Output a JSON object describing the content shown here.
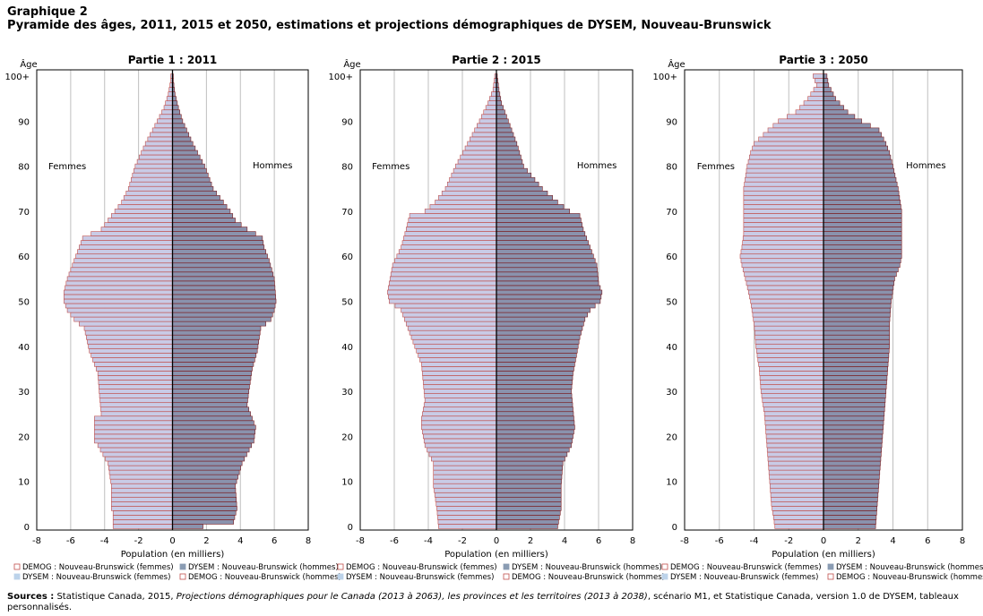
{
  "header": {
    "label": "Graphique 2",
    "title": "Pyramide des âges, 2011, 2015 et 2050, estimations et projections démographiques de DYSEM, Nouveau-Brunswick"
  },
  "colors": {
    "femmes_fill": "#c9cbe6",
    "femmes_stroke": "#c0504d",
    "hommes_fill": "#8a92ad",
    "hommes_stroke": "#7a1e22",
    "dysem_femmes": "#bcd3ea",
    "dysem_hommes": "#8a9cb3",
    "grid": "#bfbfbf"
  },
  "legend_items": [
    "DEMOG : Nouveau-Brunswick (femmes)",
    "DYSEM : Nouveau-Brunswick (hommes)",
    "DYSEM : Nouveau-Brunswick (femmes)",
    "DEMOG : Nouveau-Brunswick (hommes)"
  ],
  "sources": {
    "label": "Sources :",
    "text1": "Statistique Canada, 2015, ",
    "italic": "Projections démographiques pour le Canada (2013 à 2063), les provinces et les territoires (2013 à 2038)",
    "text2": ", scénario M1, et Statistique Canada, version 1.0 de DYSEM, tableaux personnalisés."
  },
  "chart_data": [
    {
      "type": "bar",
      "orientation": "horizontal-pyramid",
      "title": "Partie 1 : 2011",
      "ylabel": "Âge",
      "xlabel": "Population (en milliers)",
      "left_label": "Femmes",
      "right_label": "Hommes",
      "xlim": [
        -8,
        8
      ],
      "xticks": [
        -8,
        -6,
        -4,
        -2,
        0,
        2,
        4,
        6,
        8
      ],
      "yticks": [
        0,
        10,
        20,
        30,
        40,
        50,
        60,
        70,
        80,
        90
      ],
      "ytick_labels": [
        "0",
        "10",
        "20",
        "30",
        "40",
        "50",
        "60",
        "70",
        "80",
        "90"
      ],
      "top_label": "100+",
      "female_keys": [
        [
          0,
          3.5
        ],
        [
          3,
          3.5
        ],
        [
          4,
          3.6
        ],
        [
          9,
          3.6
        ],
        [
          14,
          3.8
        ],
        [
          18,
          4.4
        ],
        [
          19,
          4.6
        ],
        [
          24,
          4.6
        ],
        [
          25,
          4.2
        ],
        [
          29,
          4.3
        ],
        [
          34,
          4.4
        ],
        [
          39,
          4.9
        ],
        [
          44,
          5.2
        ],
        [
          46,
          5.8
        ],
        [
          48,
          6.2
        ],
        [
          50,
          6.4
        ],
        [
          52,
          6.4
        ],
        [
          55,
          6.2
        ],
        [
          59,
          5.8
        ],
        [
          62,
          5.5
        ],
        [
          64,
          5.3
        ],
        [
          65,
          4.8
        ],
        [
          66,
          4.2
        ],
        [
          68,
          3.8
        ],
        [
          70,
          3.4
        ],
        [
          72,
          3.0
        ],
        [
          75,
          2.6
        ],
        [
          80,
          2.2
        ],
        [
          85,
          1.6
        ],
        [
          90,
          0.9
        ],
        [
          93,
          0.5
        ],
        [
          96,
          0.25
        ],
        [
          99,
          0.1
        ],
        [
          100,
          0.1
        ]
      ],
      "male_keys": [
        [
          0,
          1.8
        ],
        [
          1,
          3.6
        ],
        [
          4,
          3.8
        ],
        [
          9,
          3.7
        ],
        [
          14,
          4.1
        ],
        [
          19,
          4.8
        ],
        [
          22,
          4.9
        ],
        [
          24,
          4.7
        ],
        [
          27,
          4.4
        ],
        [
          30,
          4.5
        ],
        [
          35,
          4.7
        ],
        [
          39,
          5.0
        ],
        [
          44,
          5.2
        ],
        [
          46,
          5.8
        ],
        [
          48,
          6.0
        ],
        [
          50,
          6.1
        ],
        [
          55,
          6.0
        ],
        [
          59,
          5.7
        ],
        [
          62,
          5.4
        ],
        [
          64,
          5.3
        ],
        [
          65,
          4.9
        ],
        [
          66,
          4.4
        ],
        [
          68,
          3.7
        ],
        [
          70,
          3.4
        ],
        [
          75,
          2.4
        ],
        [
          80,
          1.9
        ],
        [
          85,
          1.2
        ],
        [
          90,
          0.6
        ],
        [
          93,
          0.35
        ],
        [
          96,
          0.15
        ],
        [
          99,
          0.05
        ],
        [
          100,
          0.05
        ]
      ]
    },
    {
      "type": "bar",
      "orientation": "horizontal-pyramid",
      "title": "Partie 2 : 2015",
      "ylabel": "Âge",
      "xlabel": "Population (en milliers)",
      "left_label": "Femmes",
      "right_label": "Hommes",
      "xlim": [
        -8,
        8
      ],
      "xticks": [
        -8,
        -6,
        -4,
        -2,
        0,
        2,
        4,
        6,
        8
      ],
      "yticks": [
        0,
        10,
        20,
        30,
        40,
        50,
        60,
        70,
        80,
        90
      ],
      "ytick_labels": [
        "0",
        "10",
        "20",
        "30",
        "40",
        "50",
        "60",
        "70",
        "80",
        "90"
      ],
      "top_label": "100+",
      "female_keys": [
        [
          0,
          3.4
        ],
        [
          4,
          3.5
        ],
        [
          9,
          3.7
        ],
        [
          14,
          3.7
        ],
        [
          18,
          4.2
        ],
        [
          22,
          4.4
        ],
        [
          24,
          4.4
        ],
        [
          28,
          4.2
        ],
        [
          32,
          4.3
        ],
        [
          36,
          4.4
        ],
        [
          40,
          4.8
        ],
        [
          44,
          5.2
        ],
        [
          48,
          5.6
        ],
        [
          50,
          6.3
        ],
        [
          52,
          6.4
        ],
        [
          54,
          6.3
        ],
        [
          58,
          6.1
        ],
        [
          62,
          5.6
        ],
        [
          66,
          5.3
        ],
        [
          69,
          5.1
        ],
        [
          70,
          4.2
        ],
        [
          72,
          3.6
        ],
        [
          75,
          3.0
        ],
        [
          80,
          2.4
        ],
        [
          85,
          1.7
        ],
        [
          90,
          1.0
        ],
        [
          94,
          0.5
        ],
        [
          97,
          0.2
        ],
        [
          100,
          0.1
        ]
      ],
      "male_keys": [
        [
          0,
          3.6
        ],
        [
          4,
          3.8
        ],
        [
          9,
          3.8
        ],
        [
          14,
          3.9
        ],
        [
          18,
          4.4
        ],
        [
          22,
          4.6
        ],
        [
          26,
          4.5
        ],
        [
          30,
          4.4
        ],
        [
          34,
          4.5
        ],
        [
          38,
          4.7
        ],
        [
          42,
          4.9
        ],
        [
          46,
          5.2
        ],
        [
          48,
          5.5
        ],
        [
          50,
          6.1
        ],
        [
          52,
          6.2
        ],
        [
          54,
          6.0
        ],
        [
          58,
          5.9
        ],
        [
          62,
          5.5
        ],
        [
          66,
          5.1
        ],
        [
          69,
          4.9
        ],
        [
          70,
          4.3
        ],
        [
          72,
          3.6
        ],
        [
          75,
          2.7
        ],
        [
          80,
          1.6
        ],
        [
          85,
          1.2
        ],
        [
          90,
          0.7
        ],
        [
          94,
          0.3
        ],
        [
          97,
          0.15
        ],
        [
          100,
          0.05
        ]
      ]
    },
    {
      "type": "bar",
      "orientation": "horizontal-pyramid",
      "title": "Partie 3 : 2050",
      "ylabel": "Âge",
      "xlabel": "Population (en milliers)",
      "left_label": "Femmes",
      "right_label": "Hommes",
      "xlim": [
        -8,
        8
      ],
      "xticks": [
        -8,
        -6,
        -4,
        -2,
        0,
        2,
        4,
        6,
        8
      ],
      "yticks": [
        0,
        10,
        20,
        30,
        40,
        50,
        60,
        70,
        80,
        90
      ],
      "ytick_labels": [
        "0",
        "10",
        "20",
        "30",
        "40",
        "50",
        "60",
        "70",
        "80",
        "90"
      ],
      "top_label": "100+",
      "female_keys": [
        [
          0,
          2.8
        ],
        [
          5,
          3.0
        ],
        [
          10,
          3.1
        ],
        [
          15,
          3.2
        ],
        [
          20,
          3.3
        ],
        [
          25,
          3.4
        ],
        [
          30,
          3.6
        ],
        [
          35,
          3.7
        ],
        [
          40,
          3.9
        ],
        [
          45,
          4.0
        ],
        [
          50,
          4.2
        ],
        [
          55,
          4.5
        ],
        [
          58,
          4.7
        ],
        [
          60,
          4.8
        ],
        [
          62,
          4.7
        ],
        [
          65,
          4.6
        ],
        [
          70,
          4.6
        ],
        [
          75,
          4.6
        ],
        [
          80,
          4.4
        ],
        [
          83,
          4.2
        ],
        [
          85,
          4.0
        ],
        [
          88,
          3.2
        ],
        [
          90,
          2.6
        ],
        [
          92,
          1.6
        ],
        [
          95,
          0.9
        ],
        [
          98,
          0.4
        ],
        [
          100,
          0.6
        ]
      ],
      "male_keys": [
        [
          0,
          3.0
        ],
        [
          5,
          3.1
        ],
        [
          10,
          3.2
        ],
        [
          15,
          3.3
        ],
        [
          20,
          3.4
        ],
        [
          25,
          3.5
        ],
        [
          30,
          3.6
        ],
        [
          35,
          3.7
        ],
        [
          40,
          3.8
        ],
        [
          45,
          3.8
        ],
        [
          50,
          3.9
        ],
        [
          55,
          4.1
        ],
        [
          58,
          4.4
        ],
        [
          60,
          4.5
        ],
        [
          62,
          4.5
        ],
        [
          65,
          4.5
        ],
        [
          70,
          4.5
        ],
        [
          75,
          4.3
        ],
        [
          80,
          4.0
        ],
        [
          83,
          3.8
        ],
        [
          85,
          3.6
        ],
        [
          88,
          3.2
        ],
        [
          90,
          2.2
        ],
        [
          92,
          1.4
        ],
        [
          95,
          0.7
        ],
        [
          98,
          0.3
        ],
        [
          100,
          0.2
        ]
      ]
    }
  ]
}
